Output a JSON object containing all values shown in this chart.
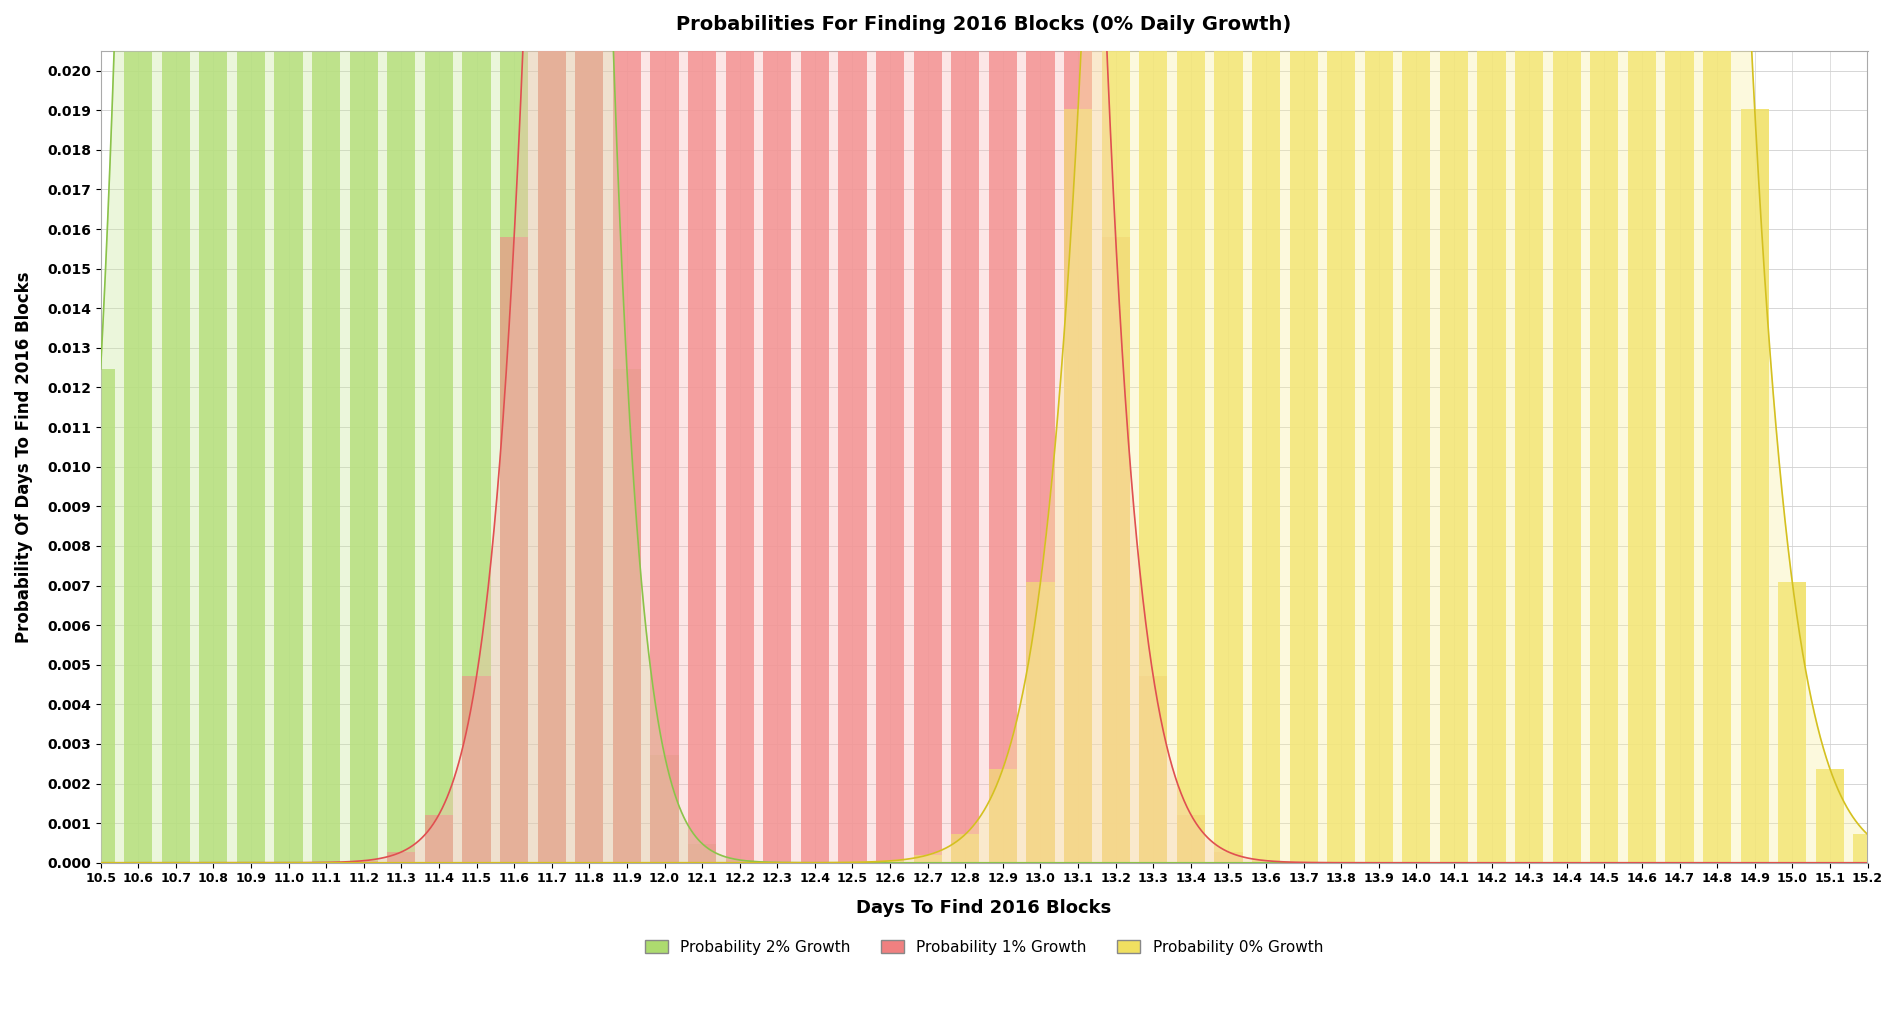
{
  "title": "Probabilities For Finding 2016 Blocks (0% Daily Growth)",
  "xlabel": "Days To Find 2016 Blocks",
  "ylabel": "Probability Of Days To Find 2016 Blocks",
  "xlim": [
    10.5,
    15.2
  ],
  "ylim": [
    0.0,
    0.0205
  ],
  "yticks": [
    0.0,
    0.001,
    0.002,
    0.003,
    0.004,
    0.005,
    0.006,
    0.007,
    0.008,
    0.009,
    0.01,
    0.011,
    0.012,
    0.013,
    0.014,
    0.015,
    0.016,
    0.017,
    0.018,
    0.019,
    0.02
  ],
  "xtick_step": 0.1,
  "curves": [
    {
      "label": "Probability 2% Growth",
      "mu": 11.2,
      "sigma": 0.222,
      "bar_color": "#ADDB6F",
      "fill_color": "#C8E89A",
      "outline_color": "#8BC34A"
    },
    {
      "label": "Probability 1% Growth",
      "mu": 12.4,
      "sigma": 0.265,
      "bar_color": "#F08080",
      "fill_color": "#F8B8B8",
      "outline_color": "#E05050"
    },
    {
      "label": "Probability 0% Growth",
      "mu": 14.0,
      "sigma": 0.31,
      "bar_color": "#F0E060",
      "fill_color": "#F8F0A0",
      "outline_color": "#D4C020"
    }
  ],
  "background_color": "#FFFFFF",
  "grid_color": "#D0D0D0",
  "legend_fill_colors": [
    "#ADDB6F",
    "#F08080",
    "#F0E060"
  ],
  "legend_labels": [
    "Probability 2% Growth",
    "Probability 1% Growth",
    "Probability 0% Growth"
  ]
}
